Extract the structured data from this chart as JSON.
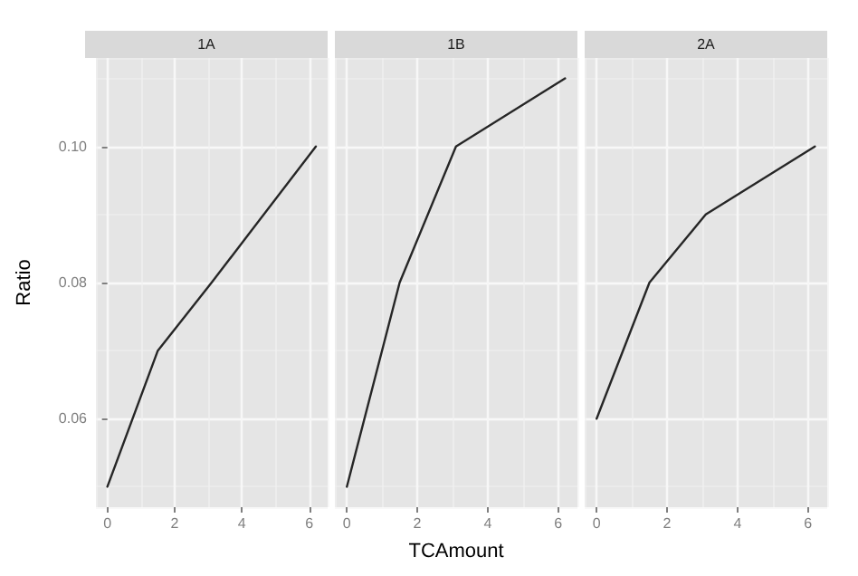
{
  "chart_data": [
    {
      "type": "line",
      "title": "1A",
      "ylabel": "Ratio",
      "x": [
        0,
        1.5,
        3.1,
        6.2
      ],
      "series": [
        {
          "color": "#262626",
          "values": [
            0.05,
            0.07,
            0.08,
            0.1
          ]
        }
      ],
      "xlim": [
        -0.34,
        6.55
      ],
      "ylim": [
        0.047,
        0.113
      ],
      "xticks": [
        0,
        2,
        4,
        6
      ],
      "yticks": [
        {
          "value": 0.06,
          "label": "0.06"
        },
        {
          "value": 0.08,
          "label": "0.08"
        },
        {
          "value": 0.1,
          "label": "0.10"
        }
      ],
      "grid": true
    },
    {
      "type": "line",
      "title": "1B",
      "xlabel": "TCAmount",
      "x": [
        0,
        1.5,
        3.1,
        6.2
      ],
      "series": [
        {
          "color": "#262626",
          "values": [
            0.05,
            0.08,
            0.1,
            0.11
          ]
        }
      ],
      "xlim": [
        -0.34,
        6.55
      ],
      "ylim": [
        0.047,
        0.113
      ],
      "xticks": [
        0,
        2,
        4,
        6
      ],
      "yticks": [
        0.06,
        0.08,
        0.1
      ],
      "grid": true,
      "tick_labels": "x"
    },
    {
      "type": "line",
      "title": "2A",
      "x": [
        0,
        1.5,
        3.1,
        6.2
      ],
      "series": [
        {
          "color": "#262626",
          "values": [
            0.06,
            0.08,
            0.09,
            0.1
          ]
        }
      ],
      "xlim": [
        -0.34,
        6.55
      ],
      "ylim": [
        0.047,
        0.113
      ],
      "xticks": [
        0,
        2,
        4,
        6
      ],
      "yticks": [
        0.06,
        0.08,
        0.1
      ],
      "grid": true,
      "tick_labels": "x"
    }
  ]
}
